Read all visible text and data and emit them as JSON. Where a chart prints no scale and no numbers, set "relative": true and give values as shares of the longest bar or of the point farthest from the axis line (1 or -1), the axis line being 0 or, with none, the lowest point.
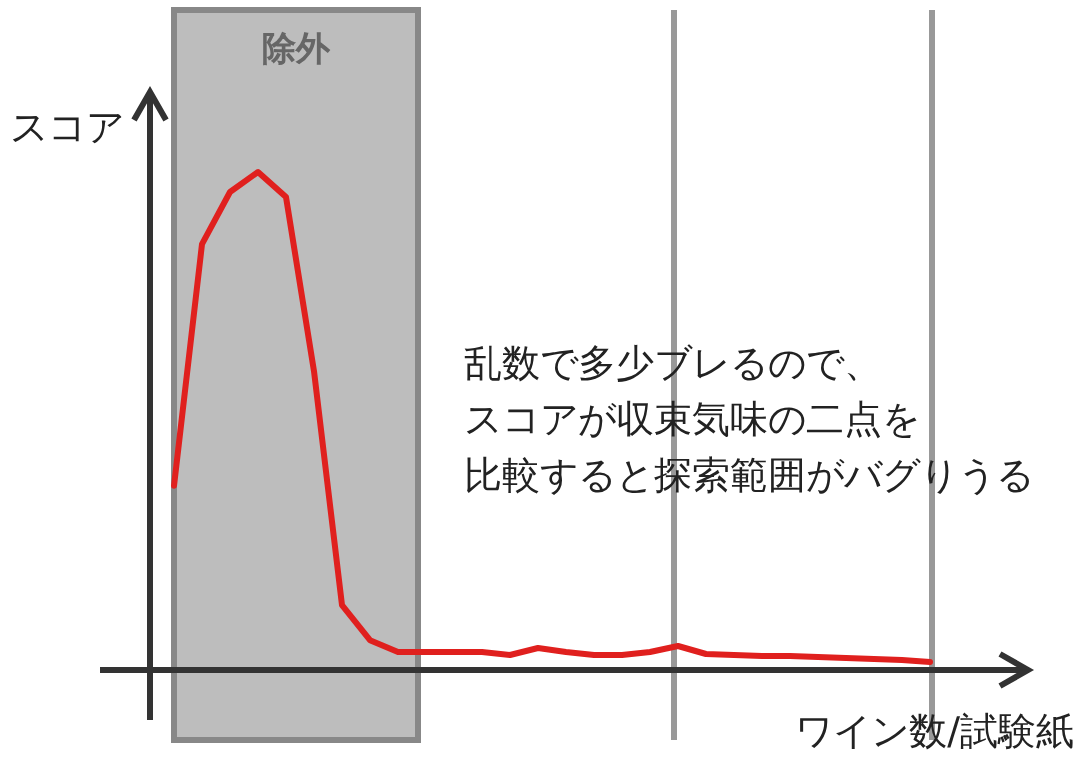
{
  "chart_data": {
    "type": "line",
    "relative": true,
    "xlabel": "ワイン数/試験紙",
    "ylabel": "スコア",
    "categories": [
      null,
      null,
      null,
      null,
      null,
      null,
      null,
      null,
      null,
      null,
      null,
      null,
      null,
      null,
      null,
      null,
      null,
      null,
      null,
      null,
      null,
      null,
      null,
      null,
      null,
      null,
      null,
      null
    ],
    "values": [
      0.37,
      0.855,
      0.96,
      1.0,
      0.95,
      0.6,
      0.13,
      0.06,
      0.036,
      0.036,
      0.036,
      0.036,
      0.03,
      0.044,
      0.036,
      0.03,
      0.03,
      0.036,
      0.048,
      0.032,
      0.03,
      0.028,
      0.028,
      0.026,
      0.024,
      0.022,
      0.02,
      0.016
    ],
    "color": "#e0201e",
    "annotations": [
      "除外",
      "乱数で多少ブレるので、",
      "スコアが収束気味の二点を",
      "比較すると探索範囲がバグりうる"
    ]
  }
}
